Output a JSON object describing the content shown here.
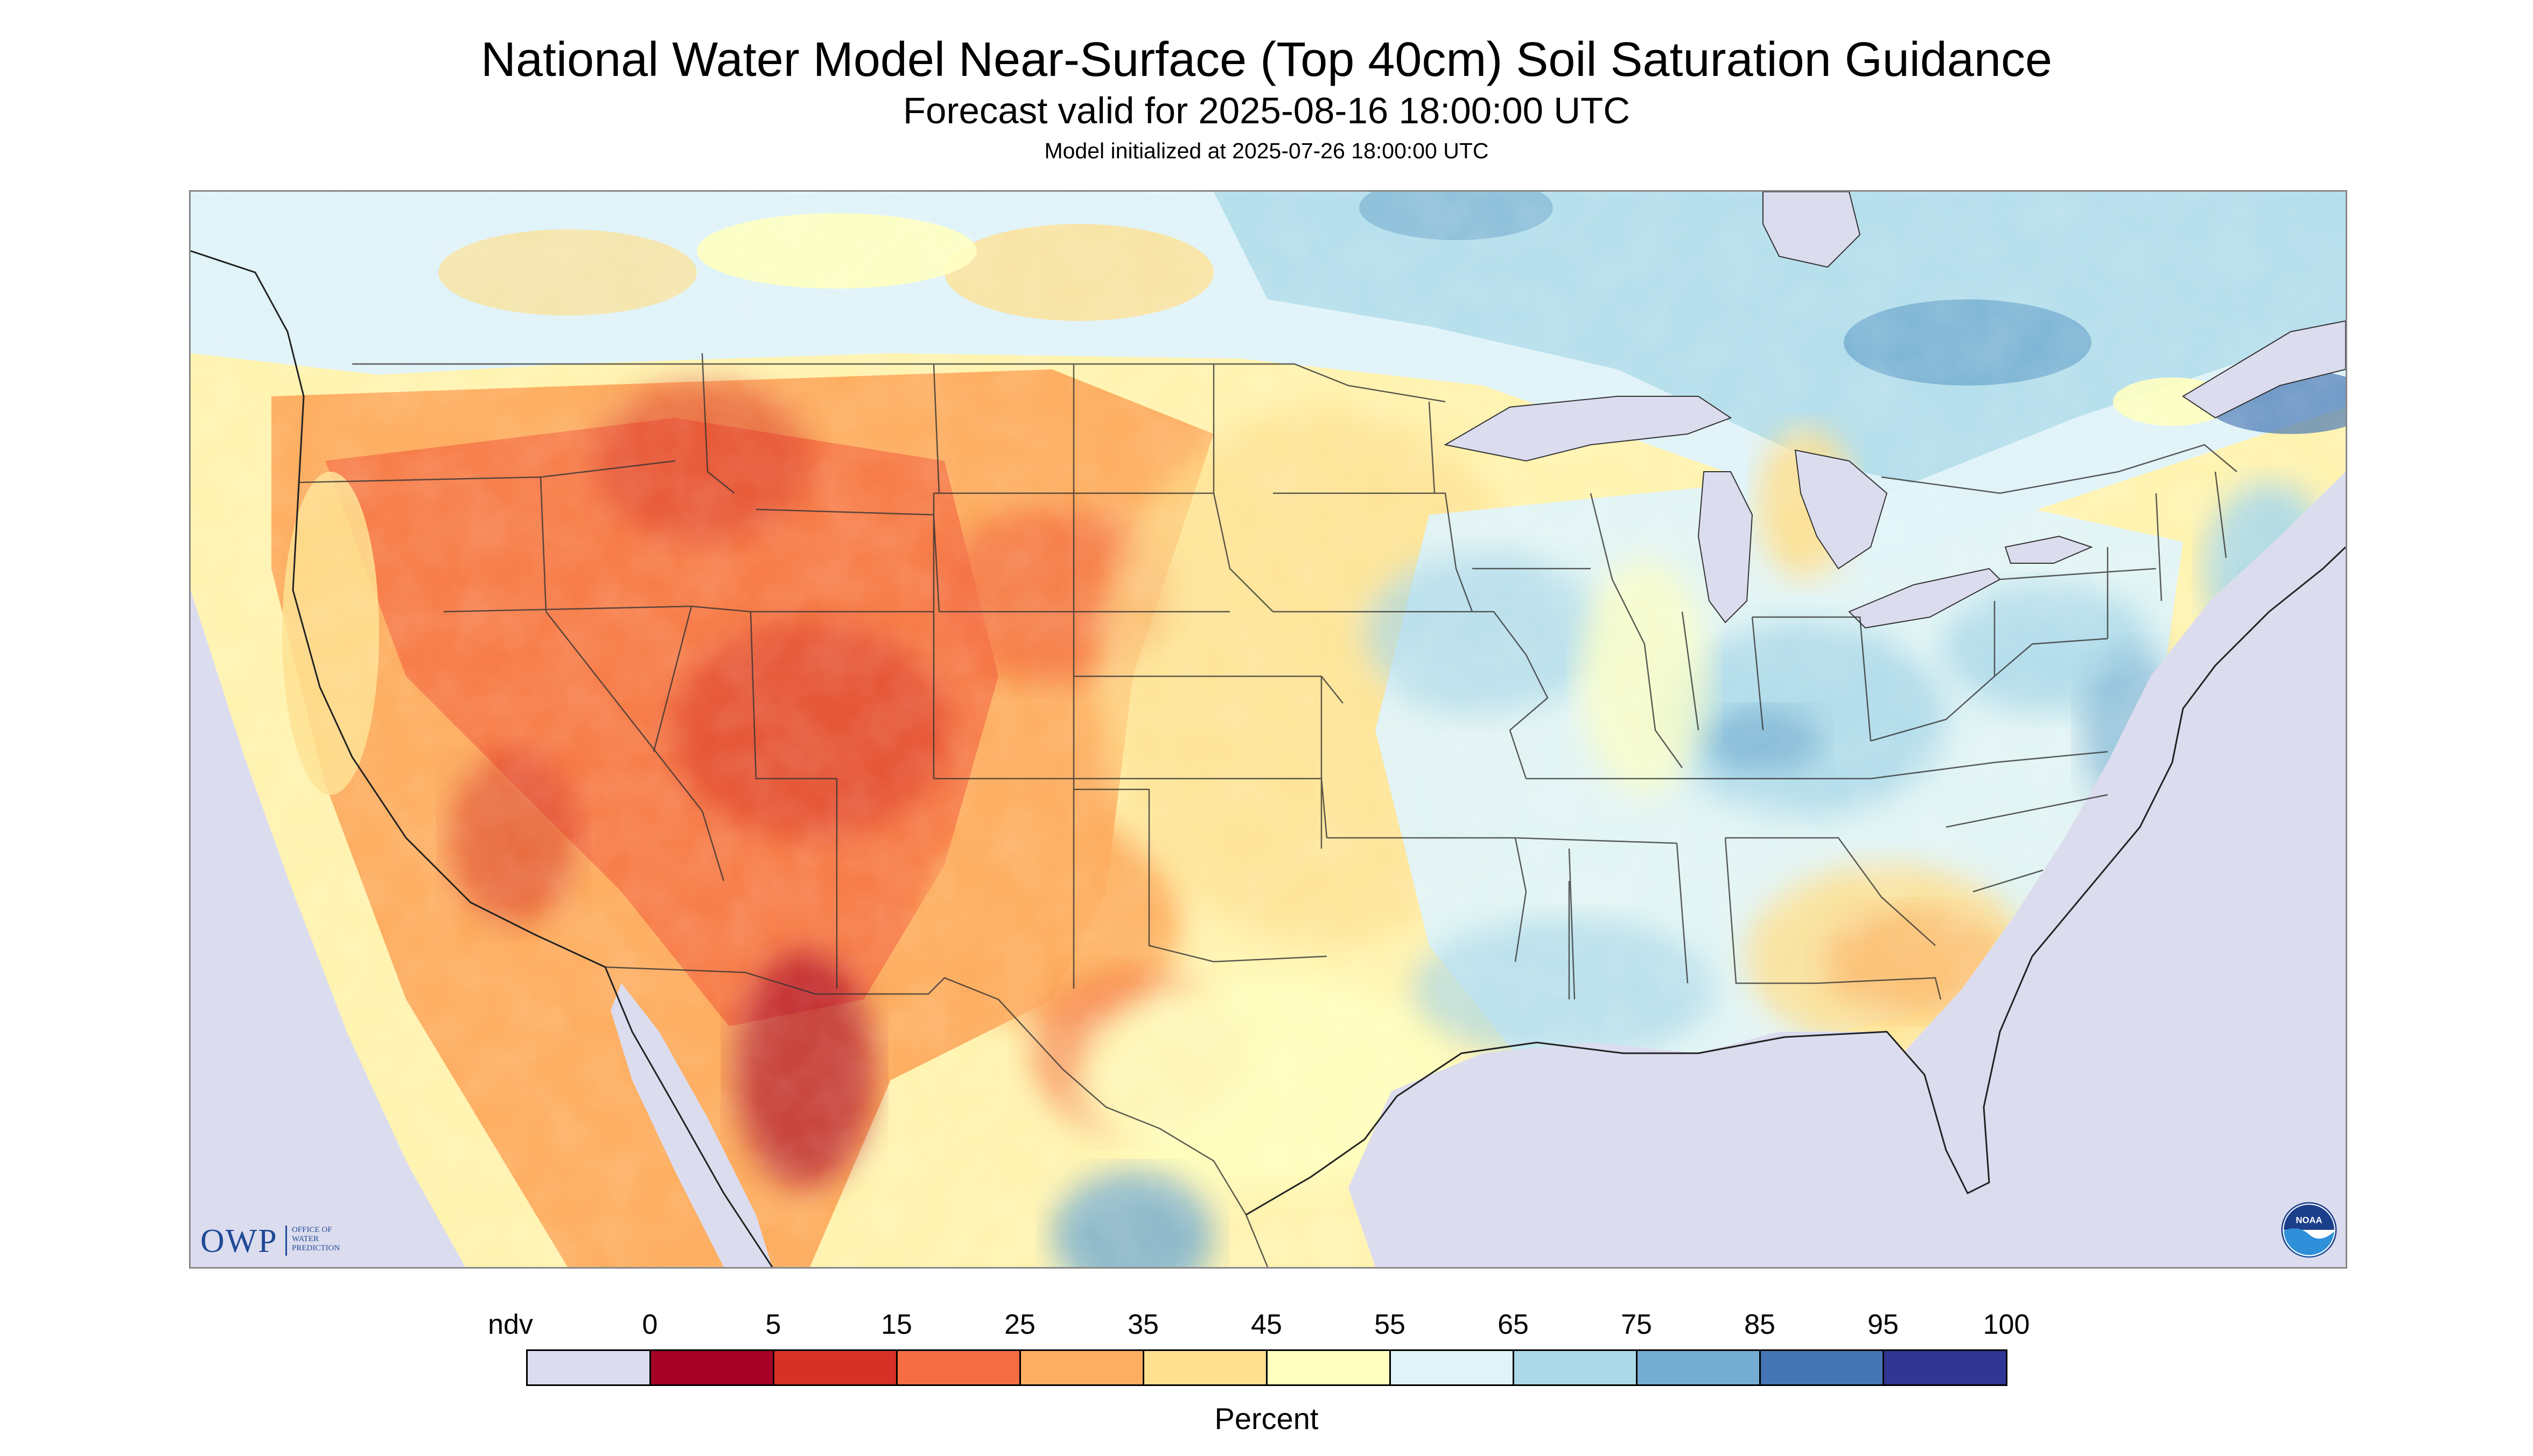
{
  "title": "National Water Model Near-Surface (Top 40cm) Soil Saturation Guidance",
  "subtitle": "Forecast valid for 2025-08-16 18:00:00 UTC",
  "init_line": "Model initialized at 2025-07-26 18:00:00 UTC",
  "legend": {
    "label": "Percent",
    "tick_labels": [
      "ndv",
      "0",
      "5",
      "15",
      "25",
      "35",
      "45",
      "55",
      "65",
      "75",
      "85",
      "95",
      "100"
    ],
    "bins": [
      {
        "range": "ndv",
        "color": "#dcdcef"
      },
      {
        "range": "0-5",
        "color": "#a50026"
      },
      {
        "range": "5-15",
        "color": "#d73027"
      },
      {
        "range": "15-25",
        "color": "#f46d43"
      },
      {
        "range": "25-35",
        "color": "#fdae61"
      },
      {
        "range": "35-45",
        "color": "#fee090"
      },
      {
        "range": "45-55",
        "color": "#ffffbf"
      },
      {
        "range": "55-65",
        "color": "#e0f3f8"
      },
      {
        "range": "65-75",
        "color": "#abd9e9"
      },
      {
        "range": "75-85",
        "color": "#74add1"
      },
      {
        "range": "85-95",
        "color": "#4575b4"
      },
      {
        "range": "95-100",
        "color": "#313695"
      }
    ]
  },
  "logos": {
    "owp": {
      "text": "OWP",
      "sub": "OFFICE OF WATER PREDICTION"
    },
    "noaa": {
      "text": "NOAA"
    }
  },
  "map": {
    "ocean_color": "#dcdcef",
    "lake_color": "#dcdcef",
    "boundary_color": "#333333"
  }
}
